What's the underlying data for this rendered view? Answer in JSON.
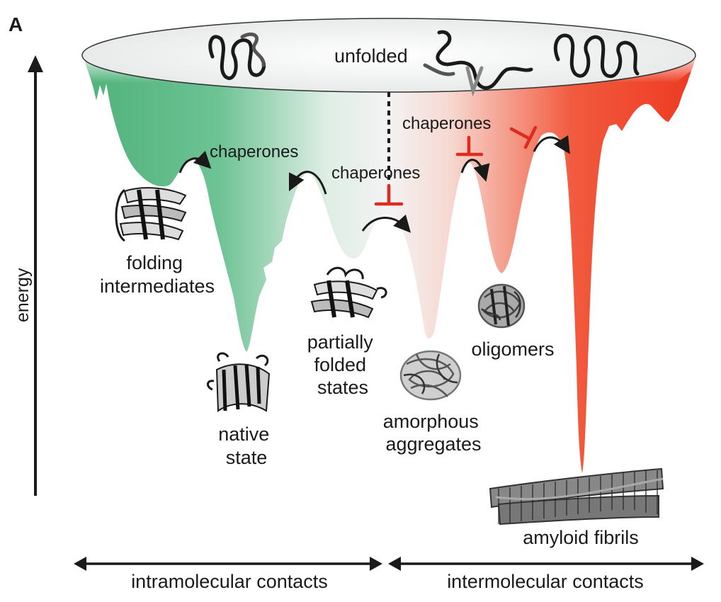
{
  "panel_label": "A",
  "axis_label": "energy",
  "labels": {
    "unfolded": "unfolded",
    "folding_intermediates": [
      "folding",
      "intermediates"
    ],
    "native_state": [
      "native",
      "state"
    ],
    "partially_folded": [
      "partially",
      "folded",
      "states"
    ],
    "amorphous_aggregates": [
      "amorphous",
      "aggregates"
    ],
    "oligomers": "oligomers",
    "amyloid_fibrils": "amyloid fibrils",
    "chaperones": "chaperones"
  },
  "bottom_axis": {
    "left": "intramolecular contacts",
    "right": "intermolecular contacts"
  },
  "colors": {
    "folding_side": "#5fbf88",
    "aggregation_side": "#ee3322",
    "inhibition": "#e02a1f",
    "ink": "#1a1a1a"
  }
}
